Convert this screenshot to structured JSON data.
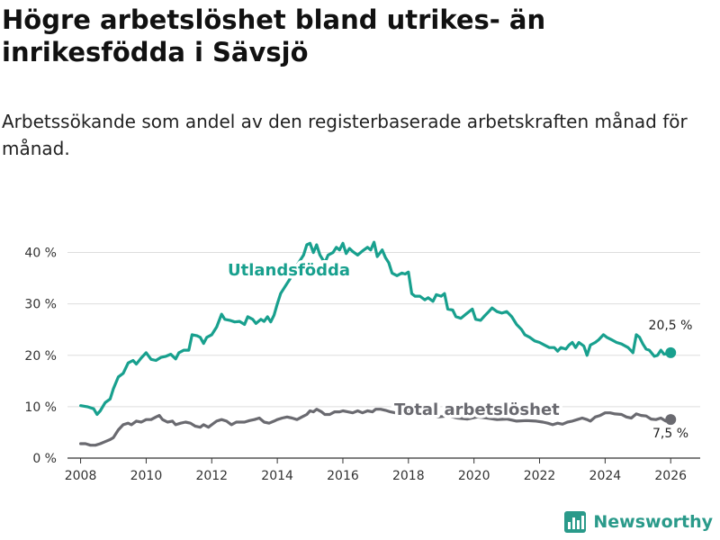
{
  "title": "Högre arbetslöshet bland utrikes- än inrikesfödda i Sävsjö",
  "subtitle": "Arbetssökande som andel av den registerbaserade arbetskraften månad för månad.",
  "brand": {
    "name": "Newsworthy"
  },
  "colors": {
    "foreign": "#18a08e",
    "total": "#6a6a70",
    "grid": "#dddddd",
    "axis": "#333333"
  },
  "chart_data": {
    "type": "line",
    "title": "Högre arbetslöshet bland utrikes- än inrikesfödda i Sävsjö",
    "xlabel": "",
    "ylabel": "",
    "ylim": [
      0,
      45
    ],
    "xlim": [
      2007.6,
      2026.9
    ],
    "y_ticks": [
      0,
      10,
      20,
      30,
      40
    ],
    "y_tick_labels": [
      "0 %",
      "10 %",
      "20 %",
      "30 %",
      "40 %"
    ],
    "x_ticks": [
      2008,
      2010,
      2012,
      2014,
      2016,
      2018,
      2020,
      2022,
      2024,
      2026
    ],
    "x_tick_labels": [
      "2008",
      "2010",
      "2012",
      "2014",
      "2016",
      "2018",
      "2020",
      "2022",
      "2024",
      "2026"
    ],
    "series": [
      {
        "name": "Utlandsfödda",
        "end_label": "20,5 %",
        "points": [
          [
            2008.0,
            10.2
          ],
          [
            2008.2,
            10.0
          ],
          [
            2008.4,
            9.6
          ],
          [
            2008.5,
            8.5
          ],
          [
            2008.6,
            9.2
          ],
          [
            2008.75,
            10.8
          ],
          [
            2008.9,
            11.5
          ],
          [
            2009.0,
            13.5
          ],
          [
            2009.15,
            15.8
          ],
          [
            2009.3,
            16.5
          ],
          [
            2009.45,
            18.5
          ],
          [
            2009.6,
            19.0
          ],
          [
            2009.7,
            18.3
          ],
          [
            2009.85,
            19.5
          ],
          [
            2010.0,
            20.5
          ],
          [
            2010.15,
            19.2
          ],
          [
            2010.3,
            19.0
          ],
          [
            2010.45,
            19.6
          ],
          [
            2010.6,
            19.8
          ],
          [
            2010.75,
            20.2
          ],
          [
            2010.9,
            19.3
          ],
          [
            2011.0,
            20.5
          ],
          [
            2011.15,
            21.0
          ],
          [
            2011.3,
            21.0
          ],
          [
            2011.4,
            24.0
          ],
          [
            2011.55,
            23.8
          ],
          [
            2011.65,
            23.5
          ],
          [
            2011.75,
            22.3
          ],
          [
            2011.85,
            23.5
          ],
          [
            2012.0,
            24.0
          ],
          [
            2012.15,
            25.5
          ],
          [
            2012.3,
            28.0
          ],
          [
            2012.4,
            27.0
          ],
          [
            2012.55,
            26.8
          ],
          [
            2012.7,
            26.5
          ],
          [
            2012.85,
            26.6
          ],
          [
            2013.0,
            26.0
          ],
          [
            2013.1,
            27.5
          ],
          [
            2013.25,
            27.0
          ],
          [
            2013.35,
            26.2
          ],
          [
            2013.5,
            27.0
          ],
          [
            2013.6,
            26.6
          ],
          [
            2013.7,
            27.5
          ],
          [
            2013.8,
            26.5
          ],
          [
            2013.9,
            27.8
          ],
          [
            2014.0,
            30.0
          ],
          [
            2014.1,
            32.0
          ],
          [
            2014.25,
            33.5
          ],
          [
            2014.4,
            35.0
          ],
          [
            2014.6,
            37.5
          ],
          [
            2014.8,
            39.5
          ],
          [
            2014.9,
            41.5
          ],
          [
            2015.0,
            41.8
          ],
          [
            2015.1,
            40.0
          ],
          [
            2015.2,
            41.5
          ],
          [
            2015.3,
            39.5
          ],
          [
            2015.45,
            38.0
          ],
          [
            2015.55,
            39.5
          ],
          [
            2015.7,
            40.0
          ],
          [
            2015.8,
            41.0
          ],
          [
            2015.9,
            40.5
          ],
          [
            2016.0,
            41.8
          ],
          [
            2016.1,
            39.8
          ],
          [
            2016.2,
            40.8
          ],
          [
            2016.3,
            40.2
          ],
          [
            2016.45,
            39.5
          ],
          [
            2016.6,
            40.3
          ],
          [
            2016.75,
            41.0
          ],
          [
            2016.85,
            40.5
          ],
          [
            2016.95,
            42.0
          ],
          [
            2017.05,
            39.2
          ],
          [
            2017.2,
            40.5
          ],
          [
            2017.3,
            39.0
          ],
          [
            2017.4,
            38.0
          ],
          [
            2017.5,
            36.0
          ],
          [
            2017.65,
            35.5
          ],
          [
            2017.8,
            36.0
          ],
          [
            2017.9,
            35.8
          ],
          [
            2018.0,
            36.2
          ],
          [
            2018.1,
            32.0
          ],
          [
            2018.2,
            31.5
          ],
          [
            2018.35,
            31.5
          ],
          [
            2018.5,
            30.8
          ],
          [
            2018.6,
            31.2
          ],
          [
            2018.75,
            30.5
          ],
          [
            2018.85,
            31.8
          ],
          [
            2019.0,
            31.5
          ],
          [
            2019.1,
            32.0
          ],
          [
            2019.2,
            29.0
          ],
          [
            2019.35,
            28.8
          ],
          [
            2019.45,
            27.5
          ],
          [
            2019.6,
            27.2
          ],
          [
            2019.75,
            28.0
          ],
          [
            2019.85,
            28.5
          ],
          [
            2019.95,
            29.0
          ],
          [
            2020.05,
            27.0
          ],
          [
            2020.2,
            26.8
          ],
          [
            2020.3,
            27.5
          ],
          [
            2020.45,
            28.5
          ],
          [
            2020.55,
            29.2
          ],
          [
            2020.7,
            28.5
          ],
          [
            2020.85,
            28.2
          ],
          [
            2021.0,
            28.5
          ],
          [
            2021.15,
            27.5
          ],
          [
            2021.3,
            26.0
          ],
          [
            2021.45,
            25.0
          ],
          [
            2021.55,
            24.0
          ],
          [
            2021.7,
            23.5
          ],
          [
            2021.85,
            22.8
          ],
          [
            2022.0,
            22.5
          ],
          [
            2022.15,
            22.0
          ],
          [
            2022.3,
            21.5
          ],
          [
            2022.45,
            21.5
          ],
          [
            2022.55,
            20.8
          ],
          [
            2022.65,
            21.5
          ],
          [
            2022.8,
            21.2
          ],
          [
            2022.9,
            22.0
          ],
          [
            2023.0,
            22.5
          ],
          [
            2023.1,
            21.5
          ],
          [
            2023.2,
            22.5
          ],
          [
            2023.35,
            21.8
          ],
          [
            2023.45,
            20.0
          ],
          [
            2023.55,
            22.0
          ],
          [
            2023.7,
            22.5
          ],
          [
            2023.8,
            23.0
          ],
          [
            2023.95,
            24.0
          ],
          [
            2024.05,
            23.5
          ],
          [
            2024.2,
            23.0
          ],
          [
            2024.35,
            22.5
          ],
          [
            2024.5,
            22.2
          ],
          [
            2024.7,
            21.5
          ],
          [
            2024.85,
            20.5
          ],
          [
            2024.95,
            24.0
          ],
          [
            2025.05,
            23.5
          ],
          [
            2025.15,
            22.2
          ],
          [
            2025.25,
            21.2
          ],
          [
            2025.35,
            21.0
          ],
          [
            2025.5,
            19.8
          ],
          [
            2025.6,
            20.0
          ],
          [
            2025.7,
            21.0
          ],
          [
            2025.8,
            20.2
          ],
          [
            2026.0,
            20.5
          ]
        ]
      },
      {
        "name": "Total arbetslöshet",
        "end_label": "7,5 %",
        "points": [
          [
            2008.0,
            2.8
          ],
          [
            2008.15,
            2.8
          ],
          [
            2008.3,
            2.5
          ],
          [
            2008.45,
            2.5
          ],
          [
            2008.6,
            2.8
          ],
          [
            2008.75,
            3.2
          ],
          [
            2008.9,
            3.6
          ],
          [
            2009.0,
            4.0
          ],
          [
            2009.15,
            5.5
          ],
          [
            2009.3,
            6.5
          ],
          [
            2009.45,
            6.8
          ],
          [
            2009.55,
            6.5
          ],
          [
            2009.7,
            7.2
          ],
          [
            2009.85,
            7.0
          ],
          [
            2010.0,
            7.5
          ],
          [
            2010.15,
            7.5
          ],
          [
            2010.3,
            8.0
          ],
          [
            2010.4,
            8.3
          ],
          [
            2010.5,
            7.5
          ],
          [
            2010.65,
            7.0
          ],
          [
            2010.8,
            7.2
          ],
          [
            2010.9,
            6.5
          ],
          [
            2011.05,
            6.8
          ],
          [
            2011.2,
            7.0
          ],
          [
            2011.35,
            6.8
          ],
          [
            2011.5,
            6.2
          ],
          [
            2011.65,
            6.0
          ],
          [
            2011.75,
            6.5
          ],
          [
            2011.9,
            6.0
          ],
          [
            2012.0,
            6.5
          ],
          [
            2012.15,
            7.2
          ],
          [
            2012.3,
            7.5
          ],
          [
            2012.45,
            7.2
          ],
          [
            2012.6,
            6.5
          ],
          [
            2012.75,
            7.0
          ],
          [
            2012.9,
            7.0
          ],
          [
            2013.0,
            7.0
          ],
          [
            2013.15,
            7.3
          ],
          [
            2013.3,
            7.5
          ],
          [
            2013.45,
            7.8
          ],
          [
            2013.6,
            7.0
          ],
          [
            2013.75,
            6.8
          ],
          [
            2013.9,
            7.2
          ],
          [
            2014.0,
            7.5
          ],
          [
            2014.15,
            7.8
          ],
          [
            2014.3,
            8.0
          ],
          [
            2014.45,
            7.8
          ],
          [
            2014.6,
            7.5
          ],
          [
            2014.75,
            8.0
          ],
          [
            2014.9,
            8.5
          ],
          [
            2015.0,
            9.2
          ],
          [
            2015.1,
            9.0
          ],
          [
            2015.2,
            9.5
          ],
          [
            2015.35,
            9.0
          ],
          [
            2015.45,
            8.5
          ],
          [
            2015.6,
            8.5
          ],
          [
            2015.75,
            9.0
          ],
          [
            2015.9,
            9.0
          ],
          [
            2016.0,
            9.2
          ],
          [
            2016.15,
            9.0
          ],
          [
            2016.3,
            8.8
          ],
          [
            2016.45,
            9.2
          ],
          [
            2016.6,
            8.8
          ],
          [
            2016.75,
            9.2
          ],
          [
            2016.9,
            9.0
          ],
          [
            2017.0,
            9.5
          ],
          [
            2017.15,
            9.5
          ],
          [
            2017.3,
            9.3
          ],
          [
            2017.45,
            9.0
          ],
          [
            2017.6,
            8.8
          ],
          [
            2017.75,
            9.2
          ],
          [
            2017.9,
            9.0
          ],
          [
            2018.0,
            9.0
          ],
          [
            2018.3,
            8.5
          ],
          [
            2018.6,
            8.3
          ],
          [
            2018.9,
            8.0
          ],
          [
            2019.2,
            8.2
          ],
          [
            2019.5,
            7.8
          ],
          [
            2019.8,
            7.6
          ],
          [
            2020.1,
            8.0
          ],
          [
            2020.4,
            7.8
          ],
          [
            2020.7,
            7.5
          ],
          [
            2021.0,
            7.6
          ],
          [
            2021.3,
            7.2
          ],
          [
            2021.6,
            7.3
          ],
          [
            2021.9,
            7.2
          ],
          [
            2022.1,
            7.0
          ],
          [
            2022.25,
            6.8
          ],
          [
            2022.4,
            6.5
          ],
          [
            2022.55,
            6.8
          ],
          [
            2022.7,
            6.6
          ],
          [
            2022.85,
            7.0
          ],
          [
            2023.0,
            7.2
          ],
          [
            2023.15,
            7.5
          ],
          [
            2023.3,
            7.8
          ],
          [
            2023.45,
            7.5
          ],
          [
            2023.55,
            7.2
          ],
          [
            2023.7,
            8.0
          ],
          [
            2023.85,
            8.3
          ],
          [
            2024.0,
            8.8
          ],
          [
            2024.15,
            8.8
          ],
          [
            2024.3,
            8.6
          ],
          [
            2024.5,
            8.5
          ],
          [
            2024.65,
            8.0
          ],
          [
            2024.8,
            7.8
          ],
          [
            2024.95,
            8.6
          ],
          [
            2025.1,
            8.3
          ],
          [
            2025.25,
            8.2
          ],
          [
            2025.4,
            7.6
          ],
          [
            2025.55,
            7.5
          ],
          [
            2025.7,
            7.8
          ],
          [
            2025.85,
            7.2
          ],
          [
            2026.0,
            7.5
          ]
        ]
      }
    ]
  }
}
